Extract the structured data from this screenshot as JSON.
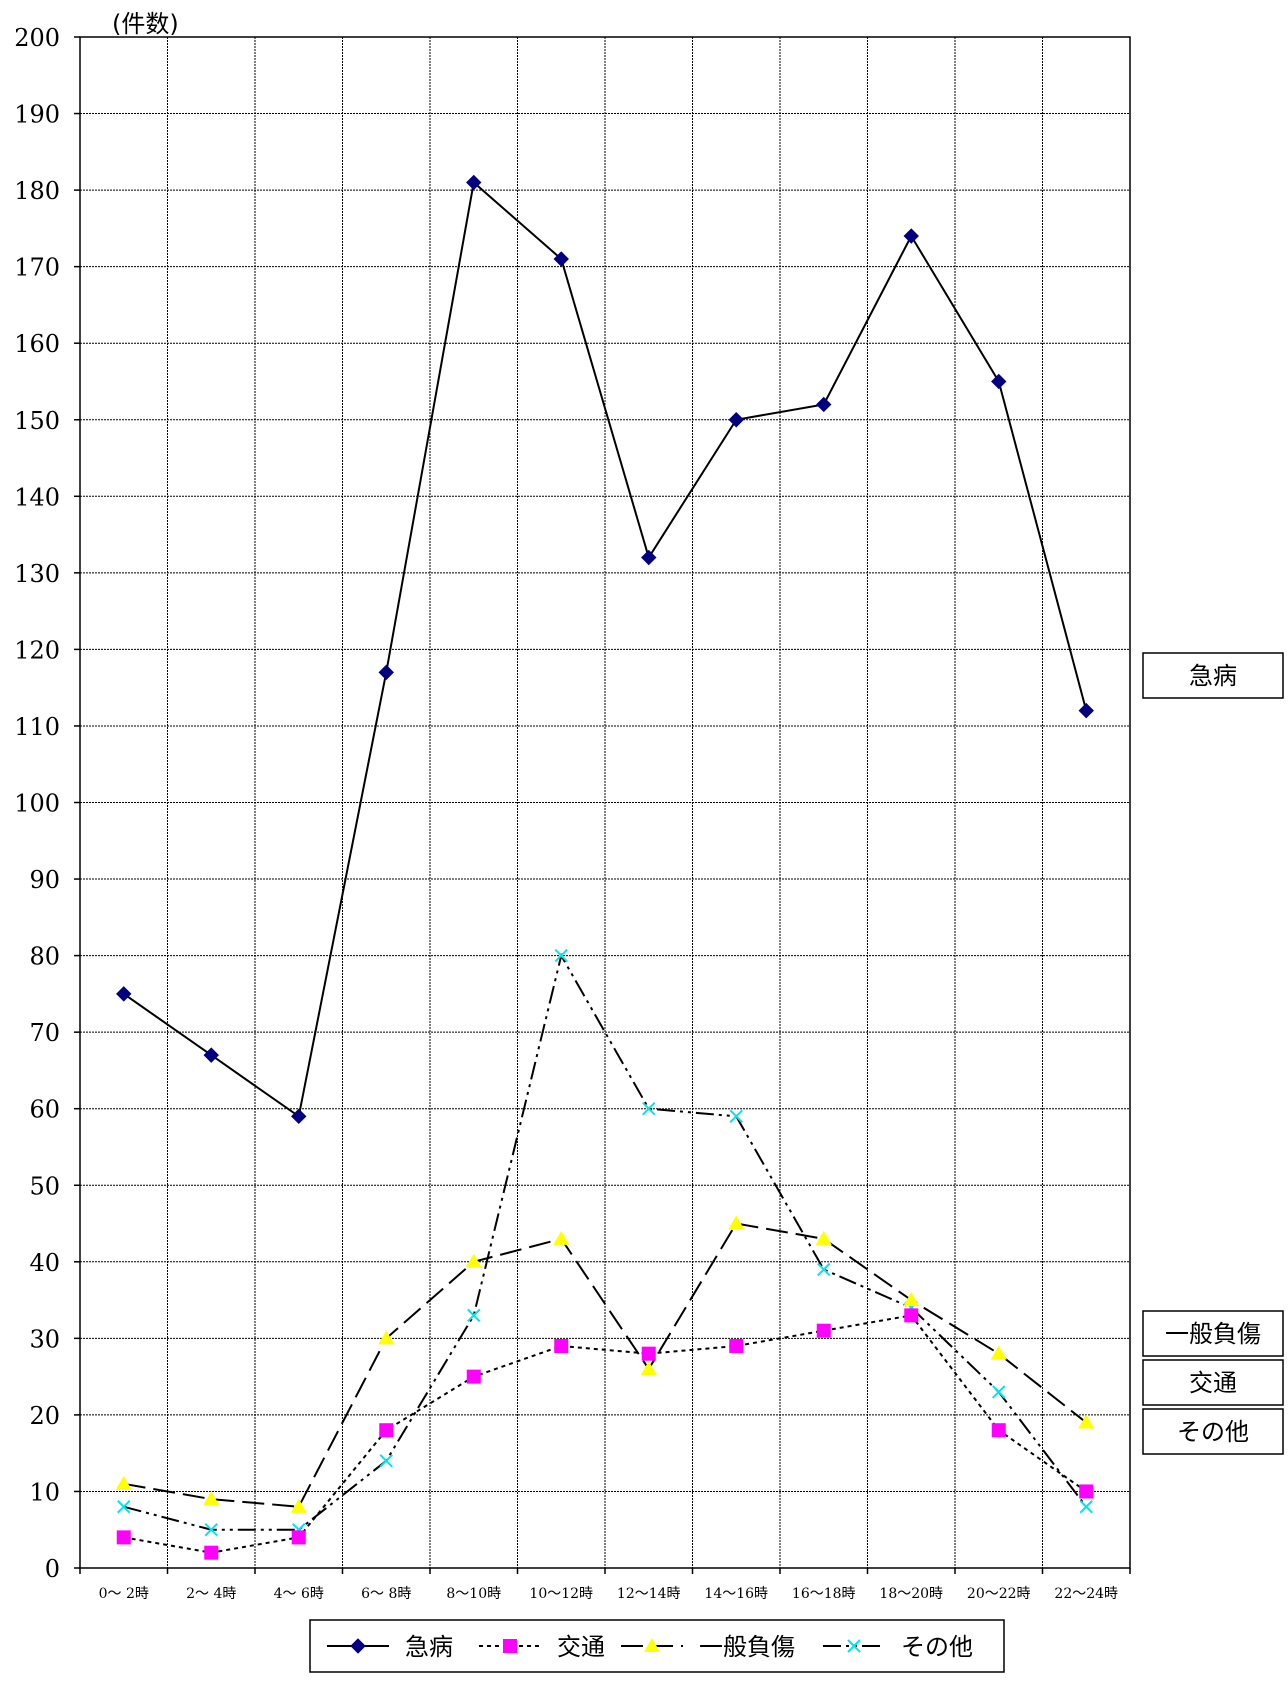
{
  "chart_data": {
    "type": "line",
    "ylabel": "(件数)",
    "ylim": [
      0,
      200
    ],
    "ytick_step": 10,
    "grid": true,
    "legend_position": "bottom",
    "categories": [
      "0～ 2時",
      "2～ 4時",
      "4～ 6時",
      "6～ 8時",
      "8～10時",
      "10～12時",
      "12～14時",
      "14～16時",
      "16～18時",
      "18～20時",
      "20～22時",
      "22～24時"
    ],
    "series": [
      {
        "name": "急病",
        "color": "#000080",
        "line_color": "#000000",
        "marker": "diamond",
        "dash": "",
        "values": [
          75,
          67,
          59,
          117,
          181,
          171,
          132,
          150,
          152,
          174,
          155,
          112
        ]
      },
      {
        "name": "交通",
        "color": "#ff00ff",
        "line_color": "#000000",
        "marker": "square",
        "dash": "4,4",
        "values": [
          4,
          2,
          4,
          18,
          25,
          29,
          28,
          29,
          31,
          33,
          18,
          10
        ]
      },
      {
        "name": "一般負傷",
        "color": "#ffff00",
        "line_color": "#000000",
        "marker": "triangle",
        "dash": "22,8",
        "values": [
          11,
          9,
          8,
          30,
          40,
          43,
          26,
          45,
          43,
          35,
          28,
          19
        ]
      },
      {
        "name": "その他",
        "color": "#00e5ee",
        "line_color": "#000000",
        "marker": "x",
        "dash": "18,5,3,5,3,5",
        "values": [
          8,
          5,
          5,
          14,
          33,
          80,
          60,
          59,
          39,
          34,
          23,
          8
        ]
      }
    ],
    "end_labels": [
      "急病",
      "一般負傷",
      "交通",
      "その他"
    ]
  }
}
